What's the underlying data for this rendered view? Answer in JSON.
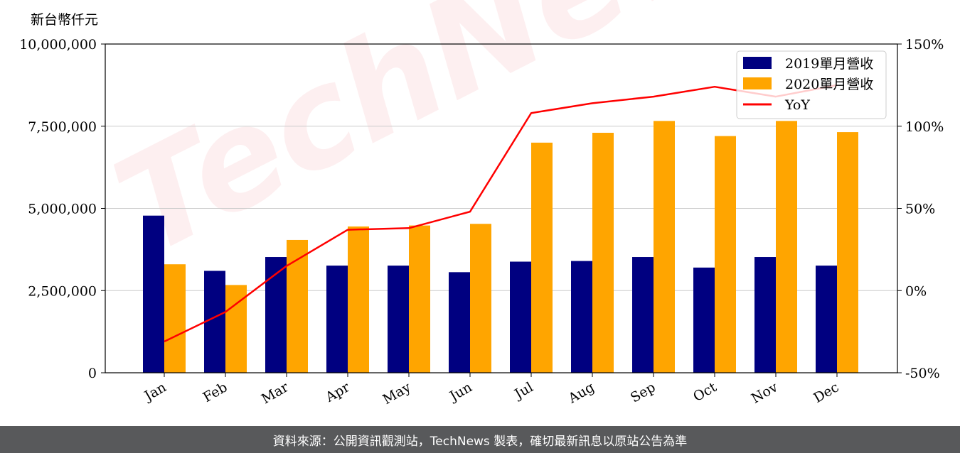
{
  "chart_data": {
    "type": "bar",
    "unit_label": "新台幣仟元",
    "categories": [
      "Jan",
      "Feb",
      "Mar",
      "Apr",
      "May",
      "Jun",
      "Jul",
      "Aug",
      "Sep",
      "Oct",
      "Nov",
      "Dec"
    ],
    "series": [
      {
        "name": "2019單月營收",
        "type": "bar",
        "axis": "left",
        "color": "#000080",
        "values": [
          4780000,
          3100000,
          3520000,
          3260000,
          3260000,
          3060000,
          3380000,
          3400000,
          3520000,
          3200000,
          3520000,
          3260000
        ]
      },
      {
        "name": "2020單月營收",
        "type": "bar",
        "axis": "left",
        "color": "#ffa500",
        "values": [
          3300000,
          2670000,
          4040000,
          4450000,
          4480000,
          4530000,
          7000000,
          7300000,
          7660000,
          7200000,
          7660000,
          7320000
        ]
      },
      {
        "name": "YoY",
        "type": "line",
        "axis": "right",
        "color": "#ff0000",
        "values": [
          -31,
          -13,
          15,
          37,
          38,
          48,
          108,
          114,
          118,
          124,
          118,
          125
        ]
      }
    ],
    "y_left": {
      "min": 0,
      "max": 10000000,
      "ticks": [
        "0",
        "2,500,000",
        "5,000,000",
        "7,500,000",
        "10,000,000"
      ],
      "tick_values": [
        0,
        2500000,
        5000000,
        7500000,
        10000000
      ]
    },
    "y_right": {
      "min": -50,
      "max": 150,
      "ticks": [
        "-50%",
        "0%",
        "50%",
        "100%",
        "150%"
      ],
      "tick_values": [
        -50,
        0,
        50,
        100,
        150
      ]
    },
    "grid": true,
    "legend_position": "top-right"
  },
  "watermark": "TechNews",
  "footer": {
    "text": "資料來源：公開資訊觀測站，TechNews 製表，確切最新訊息以原站公告為準"
  }
}
